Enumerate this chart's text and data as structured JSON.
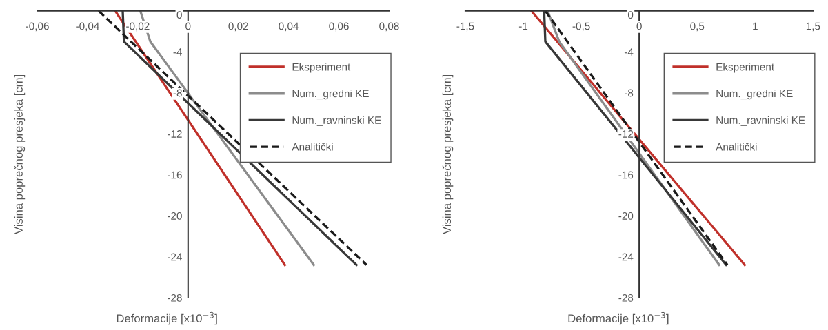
{
  "chart_data": [
    {
      "type": "line",
      "xlabel": "Deformacije [x10$^{−3}$]",
      "ylabel": "Visina poprečnog presjeka [cm]",
      "xlim": [
        -0.06,
        0.08
      ],
      "xticks": [
        {
          "value": -0.06,
          "label": "-0,06"
        },
        {
          "value": -0.04,
          "label": "-0,04"
        },
        {
          "value": -0.02,
          "label": "-0,02"
        },
        {
          "value": 0,
          "label": "0"
        },
        {
          "value": 0.02,
          "label": "0,02"
        },
        {
          "value": 0.04,
          "label": "0,04"
        },
        {
          "value": 0.06,
          "label": "0,06"
        },
        {
          "value": 0.08,
          "label": "0,08"
        }
      ],
      "ylim": [
        -28,
        0
      ],
      "yticks": [
        0,
        -4,
        -8,
        -12,
        -16,
        -20,
        -24,
        -28
      ],
      "legend": "top right",
      "grid": false,
      "series": [
        {
          "name": "Eksperiment",
          "color": "#c0302a",
          "x": [
            -0.029,
            0.0385
          ],
          "values": [
            0,
            -24.8
          ]
        },
        {
          "name": "Num._gredni KE",
          "color": "#8c8c8c",
          "x": [
            -0.019,
            -0.015,
            0.05
          ],
          "values": [
            0,
            -3,
            -24.8
          ]
        },
        {
          "name": "Num._ravninski KE",
          "color": "#383838",
          "x": [
            -0.026,
            -0.0255,
            0.067
          ],
          "values": [
            0,
            -3,
            -24.8
          ]
        },
        {
          "name": "Analitički",
          "color": "#1a1a1a",
          "line_style": "dashed",
          "x": [
            -0.0356,
            0.071
          ],
          "values": [
            0,
            -24.8
          ]
        }
      ]
    },
    {
      "type": "line",
      "xlabel": "Deformacije [x10$^{−3}$]",
      "ylabel": "Visina poprečnog presjeka [cm]",
      "xlim": [
        -1.5,
        1.5
      ],
      "xticks": [
        {
          "value": -1.5,
          "label": "-1,5"
        },
        -1,
        {
          "value": -0.5,
          "label": "-0,5"
        },
        0,
        {
          "value": 0.5,
          "label": "0,5"
        },
        1,
        {
          "value": 1.5,
          "label": "1,5"
        }
      ],
      "ylim": [
        -28,
        0
      ],
      "yticks": [
        0,
        -4,
        -8,
        -12,
        -16,
        -20,
        -24,
        -28
      ],
      "legend": "top right",
      "grid": false,
      "series": [
        {
          "name": "Eksperiment",
          "color": "#c0302a",
          "x": [
            -0.93,
            0.91
          ],
          "values": [
            0,
            -24.8
          ]
        },
        {
          "name": "Num._gredni KE",
          "color": "#8c8c8c",
          "x": [
            -0.79,
            -0.69,
            0.69
          ],
          "values": [
            0,
            -3,
            -24.8
          ]
        },
        {
          "name": "Num._ravninski KE",
          "color": "#383838",
          "x": [
            -0.82,
            -0.81,
            0.75
          ],
          "values": [
            0,
            -3,
            -24.8
          ]
        },
        {
          "name": "Analitički",
          "color": "#1a1a1a",
          "line_style": "dashed",
          "x": [
            -0.81,
            0.76
          ],
          "values": [
            0,
            -24.8
          ]
        }
      ]
    }
  ]
}
